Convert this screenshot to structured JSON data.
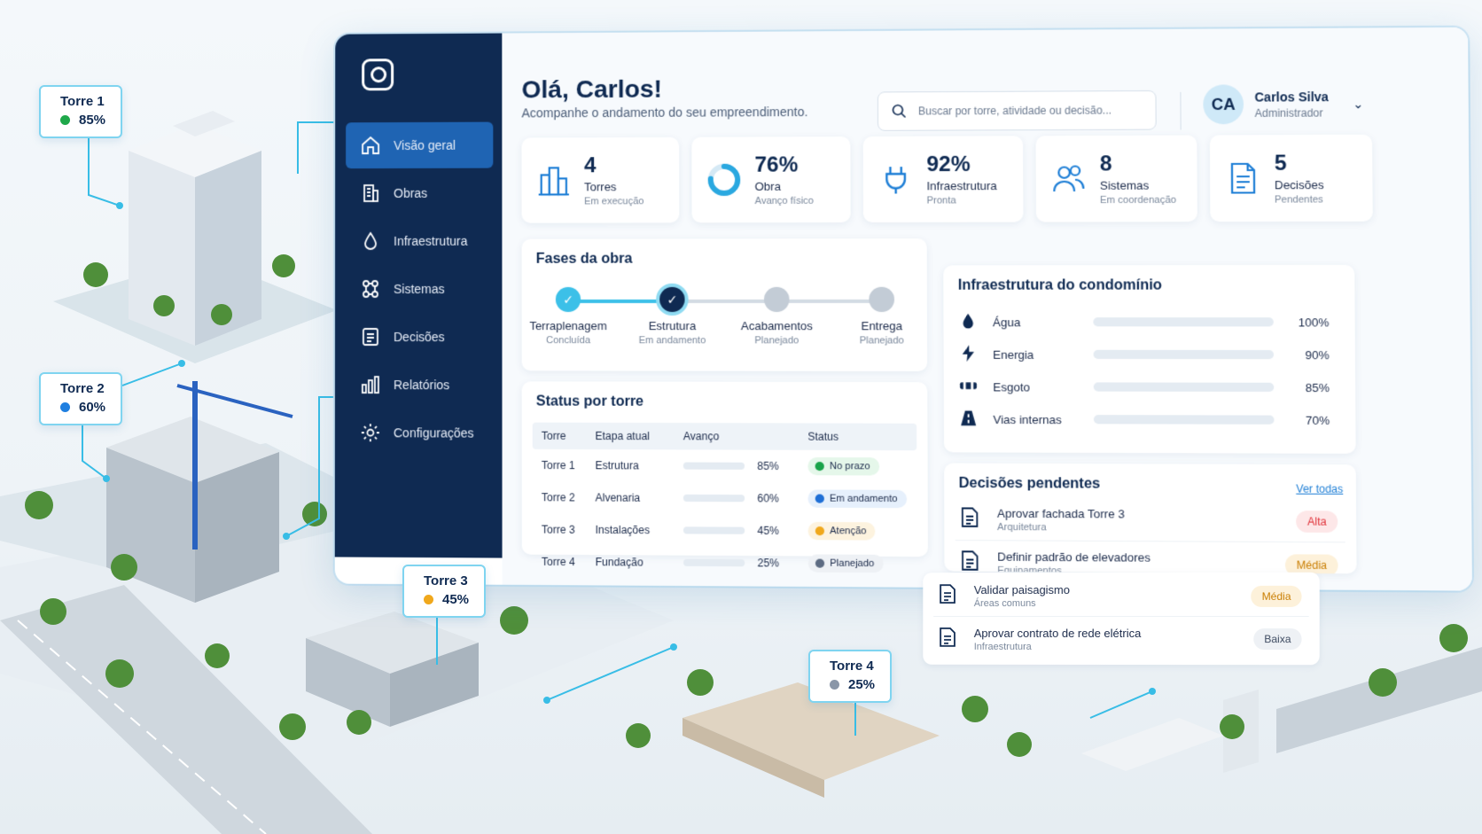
{
  "sidebar": {
    "items": [
      {
        "label": "Visão geral",
        "icon": "home-icon",
        "active": true
      },
      {
        "label": "Obras",
        "icon": "building-icon",
        "active": false
      },
      {
        "label": "Infraestrutura",
        "icon": "water-drop-icon",
        "active": false
      },
      {
        "label": "Sistemas",
        "icon": "network-icon",
        "active": false
      },
      {
        "label": "Decisões",
        "icon": "document-icon",
        "active": false
      },
      {
        "label": "Relatórios",
        "icon": "bar-chart-icon",
        "active": false
      },
      {
        "label": "Configurações",
        "icon": "gear-icon",
        "active": false
      }
    ]
  },
  "header": {
    "greeting": "Olá, Carlos!",
    "subtitle": "Acompanhe o andamento do seu empreendimento.",
    "search_placeholder": "Buscar por torre, atividade ou decisão..."
  },
  "user": {
    "initials": "CA",
    "name": "Carlos Silva",
    "role": "Administrador"
  },
  "kpis": [
    {
      "value": "4",
      "label": "Torres",
      "sub": "Em execução",
      "icon": "towers-icon"
    },
    {
      "value": "76%",
      "label": "Obra",
      "sub": "Avanço físico",
      "icon": "donut-progress-icon",
      "progress": 0.76
    },
    {
      "value": "92%",
      "label": "Infraestrutura",
      "sub": "Pronta",
      "icon": "plug-icon"
    },
    {
      "value": "8",
      "label": "Sistemas",
      "sub": "Em coordenação",
      "icon": "users-icon"
    },
    {
      "value": "5",
      "label": "Decisões",
      "sub": "Pendentes",
      "icon": "document-icon"
    }
  ],
  "phases": {
    "title": "Fases da obra",
    "items": [
      {
        "name": "Terraplenagem",
        "state": "Concluída",
        "done": true
      },
      {
        "name": "Estrutura",
        "state": "Em andamento",
        "done": true
      },
      {
        "name": "Acabamentos",
        "state": "Planejado",
        "done": false
      },
      {
        "name": "Entrega",
        "state": "Planejado",
        "done": false
      }
    ]
  },
  "status_table": {
    "title": "Status por torre",
    "headers": [
      "Torre",
      "Etapa atual",
      "Avanço",
      "Status"
    ],
    "rows": [
      {
        "torre": "Torre 1",
        "etapa": "Estrutura",
        "avanco": "85%",
        "progress": 0.85,
        "status": "No prazo",
        "status_color": "#1aa34a",
        "status_bg": "#e5f7ea"
      },
      {
        "torre": "Torre 2",
        "etapa": "Alvenaria",
        "avanco": "60%",
        "progress": 0.6,
        "status": "Em andamento",
        "status_color": "#1f6fd6",
        "status_bg": "#e6f0fc"
      },
      {
        "torre": "Torre 3",
        "etapa": "Instalações",
        "avanco": "45%",
        "progress": 0.45,
        "status": "Atenção",
        "status_color": "#f0a81c",
        "status_bg": "#fdf3df"
      },
      {
        "torre": "Torre 4",
        "etapa": "Fundação",
        "avanco": "25%",
        "progress": 0.25,
        "status": "Planejado",
        "status_color": "#5d6b82",
        "status_bg": "#eef1f5"
      }
    ]
  },
  "infra": {
    "title": "Infraestrutura do condomínio",
    "items": [
      {
        "name": "Água",
        "pct": "100%",
        "progress": 1.0,
        "icon": "water-drop-icon"
      },
      {
        "name": "Energia",
        "pct": "90%",
        "progress": 0.9,
        "icon": "lightning-icon"
      },
      {
        "name": "Esgoto",
        "pct": "85%",
        "progress": 0.85,
        "icon": "pipe-icon"
      },
      {
        "name": "Vias internas",
        "pct": "70%",
        "progress": 0.7,
        "icon": "road-icon"
      }
    ]
  },
  "decisions": {
    "title": "Decisões pendentes",
    "link": "Ver todas",
    "items": [
      {
        "title": "Aprovar fachada Torre 3",
        "category": "Arquitetura",
        "priority": "Alta",
        "color": "#e0323a",
        "bg": "#fde7e8"
      },
      {
        "title": "Definir padrão de elevadores",
        "category": "Equipamentos",
        "priority": "Média",
        "color": "#c97d00",
        "bg": "#fdf1da"
      },
      {
        "title": "Validar paisagismo",
        "category": "Áreas comuns",
        "priority": "Média",
        "color": "#c97d00",
        "bg": "#fdf1da"
      },
      {
        "title": "Aprovar contrato de rede elétrica",
        "category": "Infraestrutura",
        "priority": "Baixa",
        "color": "#3d4a60",
        "bg": "#eef1f5"
      }
    ]
  },
  "towers": [
    {
      "name": "Torre 1",
      "pct": "85%",
      "color": "#1fa84a"
    },
    {
      "name": "Torre 2",
      "pct": "60%",
      "color": "#1f7fe0"
    },
    {
      "name": "Torre 3",
      "pct": "45%",
      "color": "#f0a81c"
    },
    {
      "name": "Torre 4",
      "pct": "25%",
      "color": "#8a96a8"
    }
  ],
  "colors": {
    "sidebar": "#0f2a52",
    "accent": "#3cc0e8",
    "active_nav": "#1f64b3"
  }
}
